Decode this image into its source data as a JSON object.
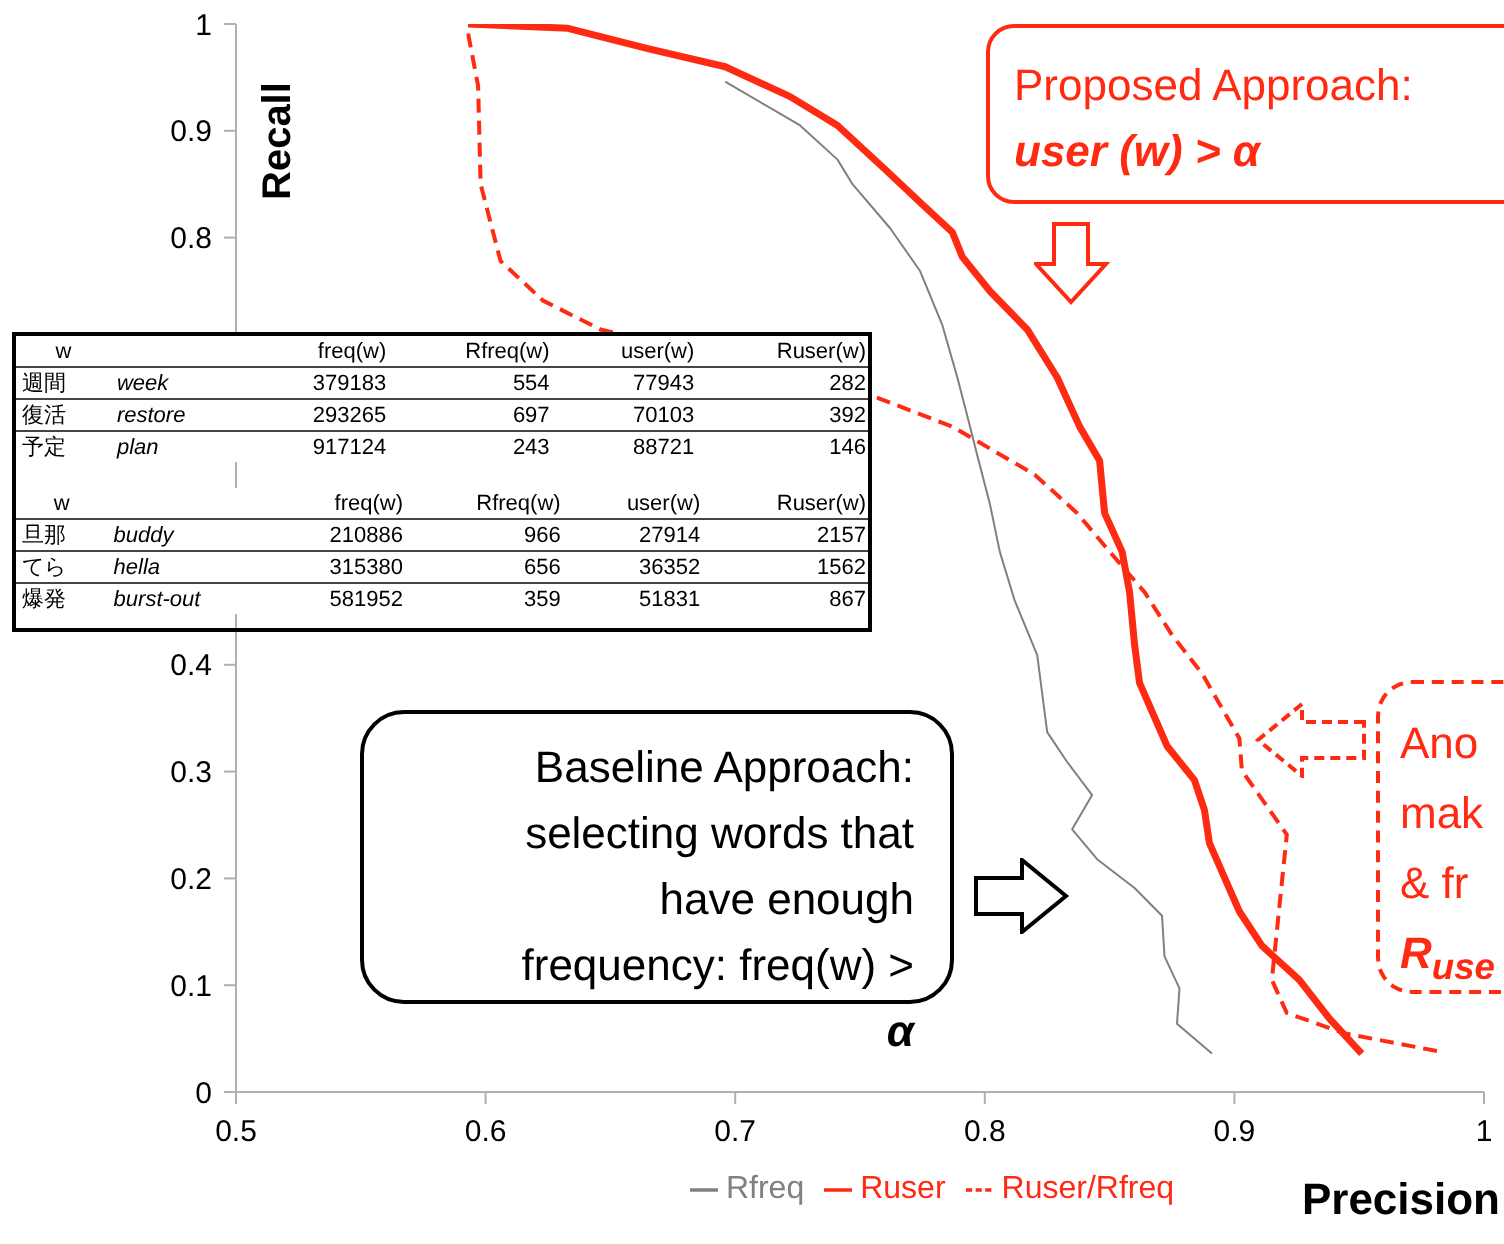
{
  "chart_data": [
    {
      "type": "line",
      "xlabel": "Precision",
      "ylabel": "Recall",
      "xlim": [
        0.5,
        1
      ],
      "xticks": [
        0.5,
        0.6,
        0.7,
        0.8,
        0.9,
        1
      ],
      "ylim": [
        0,
        1
      ],
      "yticks": [
        0,
        0.1,
        0.2,
        0.3,
        0.4,
        0.8,
        0.9,
        1
      ],
      "grid": false,
      "legend": "bottom",
      "marker": "none",
      "series": [
        {
          "name": "Rfreq",
          "color": "#808080",
          "line_style": "solid",
          "x": [
            0.696,
            0.726,
            0.741,
            0.747,
            0.762,
            0.774,
            0.783,
            0.789,
            0.793,
            0.797,
            0.802,
            0.806,
            0.812,
            0.821,
            0.825,
            0.833,
            0.843,
            0.835,
            0.845,
            0.86,
            0.871,
            0.872,
            0.878,
            0.877,
            0.891
          ],
          "values": [
            0.946,
            0.905,
            0.873,
            0.85,
            0.809,
            0.769,
            0.718,
            0.669,
            0.633,
            0.596,
            0.551,
            0.506,
            0.46,
            0.409,
            0.337,
            0.309,
            0.278,
            0.246,
            0.218,
            0.191,
            0.165,
            0.127,
            0.097,
            0.064,
            0.036
          ]
        },
        {
          "name": "Ruser",
          "color": "#ff2a12",
          "line_style": "solid",
          "x": [
            0.593,
            0.633,
            0.665,
            0.696,
            0.722,
            0.741,
            0.76,
            0.775,
            0.787,
            0.791,
            0.802,
            0.817,
            0.829,
            0.838,
            0.846,
            0.848,
            0.855,
            0.858,
            0.86,
            0.862,
            0.873,
            0.884,
            0.888,
            0.89,
            0.896,
            0.902,
            0.911,
            0.926,
            0.938,
            0.951
          ],
          "values": [
            1.0,
            0.996,
            0.977,
            0.96,
            0.932,
            0.905,
            0.864,
            0.831,
            0.805,
            0.782,
            0.75,
            0.714,
            0.669,
            0.623,
            0.591,
            0.542,
            0.506,
            0.468,
            0.419,
            0.383,
            0.324,
            0.292,
            0.264,
            0.233,
            0.201,
            0.169,
            0.137,
            0.105,
            0.069,
            0.036
          ]
        },
        {
          "name": "Ruser/Rfreq",
          "color": "#ff2a12",
          "line_style": "dashed",
          "x": [
            0.593,
            0.597,
            0.598,
            0.606,
            0.623,
            0.646,
            0.757,
            0.787,
            0.82,
            0.837,
            0.85,
            0.864,
            0.875,
            0.887,
            0.902,
            0.903,
            0.921,
            0.915,
            0.921,
            0.944,
            0.982
          ],
          "values": [
            0.991,
            0.942,
            0.85,
            0.778,
            0.741,
            0.714,
            0.65,
            0.623,
            0.578,
            0.542,
            0.506,
            0.468,
            0.428,
            0.392,
            0.331,
            0.301,
            0.241,
            0.105,
            0.074,
            0.055,
            0.038
          ]
        }
      ],
      "annotations": [
        "Proposed Approach:\nuser (w) > α",
        "Baseline Approach:\nselecting words that\nhave enough\nfrequency:  freq(w) >\nα",
        "Ano\nmak\n& fr\nR$_{use}$"
      ]
    },
    {
      "type": "other",
      "categories": [
        "w",
        null,
        "freq(w)",
        "Rfreq(w)",
        "user(w)",
        "Ruser(w)"
      ],
      "cell_labels": [
        [
          "週間",
          "week",
          "379183",
          "554",
          "77943",
          "282"
        ],
        [
          "復活",
          "restore",
          "293265",
          "697",
          "70103",
          "392"
        ],
        [
          "予定",
          "plan",
          "917124",
          "243",
          "88721",
          "146"
        ]
      ]
    },
    {
      "type": "other",
      "categories": [
        "w",
        null,
        "freq(w)",
        "Rfreq(w)",
        "user(w)",
        "Ruser(w)"
      ],
      "cell_labels": [
        [
          "旦那",
          "buddy",
          "210886",
          "966",
          "27914",
          "2157"
        ],
        [
          "てら",
          "hella",
          "315380",
          "656",
          "36352",
          "1562"
        ],
        [
          "爆発",
          "burst-out",
          "581952",
          "359",
          "51831",
          "867"
        ]
      ]
    }
  ]
}
